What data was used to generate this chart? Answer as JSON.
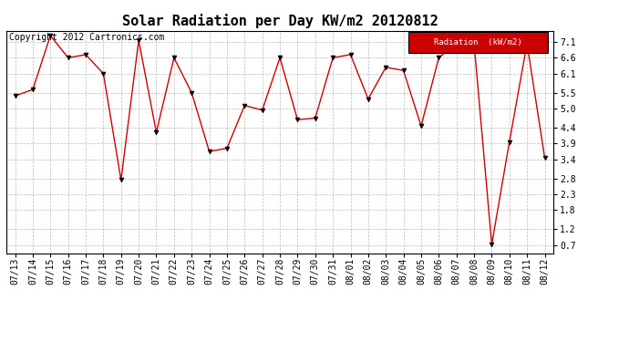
{
  "title": "Solar Radiation per Day KW/m2 20120812",
  "copyright": "Copyright 2012 Cartronics.com",
  "legend_label": "Radiation  (kW/m2)",
  "dates": [
    "07/13",
    "07/14",
    "07/15",
    "07/16",
    "07/17",
    "07/18",
    "07/19",
    "07/20",
    "07/21",
    "07/22",
    "07/23",
    "07/24",
    "07/25",
    "07/26",
    "07/27",
    "07/28",
    "07/29",
    "07/30",
    "07/31",
    "08/01",
    "08/02",
    "08/03",
    "08/04",
    "08/05",
    "08/06",
    "08/07",
    "08/08",
    "08/09",
    "08/10",
    "08/11",
    "08/12"
  ],
  "values": [
    5.4,
    5.6,
    7.3,
    6.6,
    6.7,
    6.1,
    2.75,
    7.15,
    4.25,
    6.6,
    5.5,
    3.65,
    3.75,
    5.1,
    4.95,
    6.6,
    4.65,
    4.7,
    6.6,
    6.7,
    5.3,
    6.3,
    6.2,
    4.45,
    6.6,
    7.05,
    7.05,
    0.72,
    3.95,
    7.05,
    3.45
  ],
  "yticks": [
    0.7,
    1.2,
    1.8,
    2.3,
    2.8,
    3.4,
    3.9,
    4.4,
    5.0,
    5.5,
    6.1,
    6.6,
    7.1
  ],
  "ylim": [
    0.45,
    7.45
  ],
  "line_color": "#cc0000",
  "marker_color": "#000000",
  "grid_color": "#bbbbbb",
  "bg_color": "#ffffff",
  "plot_bg_color": "#ffffff",
  "legend_bg": "#cc0000",
  "legend_text_color": "#ffffff",
  "title_fontsize": 11,
  "tick_fontsize": 7,
  "copyright_fontsize": 7
}
